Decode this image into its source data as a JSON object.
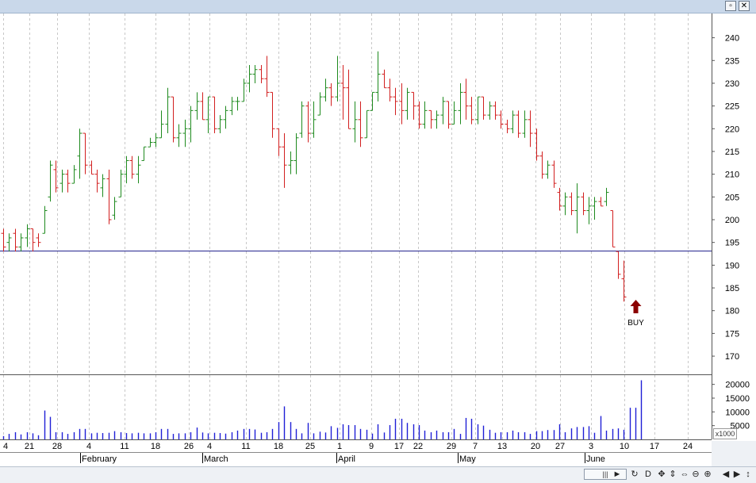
{
  "window": {
    "restore_icon": "restore-icon",
    "close_icon": "close-icon",
    "restore_glyph": "▫",
    "close_glyph": "✕"
  },
  "colors": {
    "up": "#1e8a1e",
    "down": "#d21f1f",
    "volume": "#1f1fd6",
    "level_line": "#23238f",
    "buy_arrow": "#8b0000",
    "grid": "#c8c8c8"
  },
  "price_axis": {
    "ticks": [
      240,
      235,
      230,
      225,
      220,
      215,
      210,
      205,
      200,
      195,
      190,
      185,
      180,
      175,
      170
    ],
    "range": [
      166,
      241.5
    ]
  },
  "volume_axis": {
    "ticks": [
      {
        "label": "20000",
        "v": 20000
      },
      {
        "label": "15000",
        "v": 15000
      },
      {
        "label": "10000",
        "v": 10000
      },
      {
        "label": "5000",
        "v": 5000
      }
    ],
    "max": 22500,
    "scale_label": "x1000"
  },
  "time_axis": {
    "day_labels": [
      "4",
      "21",
      "28",
      "4",
      "11",
      "18",
      "26",
      "4",
      "11",
      "18",
      "25",
      "1",
      "9",
      "17",
      "22",
      "29",
      "7",
      "13",
      "20",
      "27",
      "3",
      "10",
      "17",
      "24"
    ],
    "month_labels": [
      "February",
      "March",
      "April",
      "May",
      "June"
    ]
  },
  "level_line": {
    "price": 193.2
  },
  "signal": {
    "label": "BUY",
    "bar_index": 108
  },
  "chart_data": {
    "type": "ohlc",
    "ylim": [
      166,
      241.5
    ],
    "support_level": 193.2,
    "annotation": {
      "text": "BUY",
      "price": 181
    },
    "bars": [
      {
        "o": 197,
        "h": 198,
        "l": 193,
        "c": 194
      },
      {
        "o": 195,
        "h": 197,
        "l": 193,
        "c": 196
      },
      {
        "o": 197,
        "h": 198,
        "l": 193,
        "c": 194
      },
      {
        "o": 194,
        "h": 197,
        "l": 193,
        "c": 196
      },
      {
        "o": 196,
        "h": 199,
        "l": 194,
        "c": 198
      },
      {
        "o": 198,
        "h": 198,
        "l": 193,
        "c": 195
      },
      {
        "o": 196,
        "h": 197,
        "l": 194,
        "c": 195
      },
      {
        "o": 197,
        "h": 203,
        "l": 197,
        "c": 202
      },
      {
        "o": 205,
        "h": 213,
        "l": 204,
        "c": 212
      },
      {
        "o": 211,
        "h": 213,
        "l": 206,
        "c": 207
      },
      {
        "o": 208,
        "h": 211,
        "l": 206,
        "c": 210
      },
      {
        "o": 210,
        "h": 211,
        "l": 206,
        "c": 208
      },
      {
        "o": 208,
        "h": 212,
        "l": 208,
        "c": 211
      },
      {
        "o": 214,
        "h": 220,
        "l": 209,
        "c": 219
      },
      {
        "o": 219,
        "h": 219,
        "l": 210,
        "c": 212
      },
      {
        "o": 212,
        "h": 213,
        "l": 210,
        "c": 210
      },
      {
        "o": 210,
        "h": 211,
        "l": 206,
        "c": 208
      },
      {
        "o": 207,
        "h": 210,
        "l": 205,
        "c": 209
      },
      {
        "o": 209,
        "h": 211,
        "l": 199,
        "c": 200
      },
      {
        "o": 201,
        "h": 205,
        "l": 200,
        "c": 204
      },
      {
        "o": 205,
        "h": 211,
        "l": 205,
        "c": 210
      },
      {
        "o": 210,
        "h": 214,
        "l": 208,
        "c": 213
      },
      {
        "o": 213,
        "h": 214,
        "l": 209,
        "c": 210
      },
      {
        "o": 210,
        "h": 214,
        "l": 208,
        "c": 212
      },
      {
        "o": 213,
        "h": 216,
        "l": 213,
        "c": 216
      },
      {
        "o": 216,
        "h": 218,
        "l": 216,
        "c": 217
      },
      {
        "o": 217,
        "h": 219,
        "l": 216,
        "c": 218
      },
      {
        "o": 218,
        "h": 224,
        "l": 218,
        "c": 221
      },
      {
        "o": 221,
        "h": 229,
        "l": 219,
        "c": 227
      },
      {
        "o": 227,
        "h": 227,
        "l": 217,
        "c": 218
      },
      {
        "o": 218,
        "h": 221,
        "l": 216,
        "c": 219
      },
      {
        "o": 219,
        "h": 222,
        "l": 216,
        "c": 220
      },
      {
        "o": 220,
        "h": 225,
        "l": 217,
        "c": 224
      },
      {
        "o": 224,
        "h": 228,
        "l": 222,
        "c": 226
      },
      {
        "o": 226,
        "h": 228,
        "l": 222,
        "c": 222
      },
      {
        "o": 222,
        "h": 227,
        "l": 219,
        "c": 227
      },
      {
        "o": 227,
        "h": 227,
        "l": 219,
        "c": 220
      },
      {
        "o": 220,
        "h": 223,
        "l": 219,
        "c": 222
      },
      {
        "o": 222,
        "h": 225,
        "l": 220,
        "c": 224
      },
      {
        "o": 224,
        "h": 227,
        "l": 223,
        "c": 226
      },
      {
        "o": 226,
        "h": 227,
        "l": 224,
        "c": 226
      },
      {
        "o": 226,
        "h": 231,
        "l": 226,
        "c": 230
      },
      {
        "o": 230,
        "h": 234,
        "l": 228,
        "c": 232
      },
      {
        "o": 232,
        "h": 234,
        "l": 230,
        "c": 233
      },
      {
        "o": 233,
        "h": 234,
        "l": 230,
        "c": 231
      },
      {
        "o": 231,
        "h": 236,
        "l": 227,
        "c": 228
      },
      {
        "o": 228,
        "h": 228,
        "l": 218,
        "c": 220
      },
      {
        "o": 220,
        "h": 220,
        "l": 214,
        "c": 216
      },
      {
        "o": 216,
        "h": 219,
        "l": 207,
        "c": 212
      },
      {
        "o": 212,
        "h": 215,
        "l": 210,
        "c": 213
      },
      {
        "o": 213,
        "h": 219,
        "l": 210,
        "c": 218
      },
      {
        "o": 219,
        "h": 226,
        "l": 218,
        "c": 225
      },
      {
        "o": 225,
        "h": 226,
        "l": 217,
        "c": 219
      },
      {
        "o": 219,
        "h": 226,
        "l": 218,
        "c": 222
      },
      {
        "o": 223,
        "h": 228,
        "l": 223,
        "c": 227
      },
      {
        "o": 227,
        "h": 231,
        "l": 226,
        "c": 229
      },
      {
        "o": 229,
        "h": 230,
        "l": 225,
        "c": 227
      },
      {
        "o": 227,
        "h": 236,
        "l": 226,
        "c": 230
      },
      {
        "o": 230,
        "h": 234,
        "l": 222,
        "c": 229
      },
      {
        "o": 229,
        "h": 233,
        "l": 220,
        "c": 220
      },
      {
        "o": 220,
        "h": 226,
        "l": 217,
        "c": 222
      },
      {
        "o": 222,
        "h": 226,
        "l": 216,
        "c": 218
      },
      {
        "o": 218,
        "h": 224,
        "l": 218,
        "c": 224
      },
      {
        "o": 224,
        "h": 228,
        "l": 224,
        "c": 228
      },
      {
        "o": 228,
        "h": 237,
        "l": 226,
        "c": 232
      },
      {
        "o": 232,
        "h": 233,
        "l": 229,
        "c": 229
      },
      {
        "o": 229,
        "h": 231,
        "l": 226,
        "c": 227
      },
      {
        "o": 227,
        "h": 229,
        "l": 223,
        "c": 226
      },
      {
        "o": 226,
        "h": 230,
        "l": 221,
        "c": 224
      },
      {
        "o": 224,
        "h": 229,
        "l": 222,
        "c": 228
      },
      {
        "o": 228,
        "h": 228,
        "l": 222,
        "c": 225
      },
      {
        "o": 225,
        "h": 226,
        "l": 220,
        "c": 221
      },
      {
        "o": 221,
        "h": 226,
        "l": 220,
        "c": 224
      },
      {
        "o": 224,
        "h": 224,
        "l": 220,
        "c": 222
      },
      {
        "o": 222,
        "h": 224,
        "l": 220,
        "c": 223
      },
      {
        "o": 223,
        "h": 227,
        "l": 221,
        "c": 226
      },
      {
        "o": 226,
        "h": 226,
        "l": 220,
        "c": 221
      },
      {
        "o": 221,
        "h": 226,
        "l": 221,
        "c": 224
      },
      {
        "o": 224,
        "h": 230,
        "l": 221,
        "c": 228
      },
      {
        "o": 228,
        "h": 231,
        "l": 222,
        "c": 225
      },
      {
        "o": 225,
        "h": 227,
        "l": 221,
        "c": 222
      },
      {
        "o": 222,
        "h": 227,
        "l": 221,
        "c": 227
      },
      {
        "o": 227,
        "h": 227,
        "l": 222,
        "c": 223
      },
      {
        "o": 223,
        "h": 226,
        "l": 222,
        "c": 225
      },
      {
        "o": 225,
        "h": 226,
        "l": 222,
        "c": 223
      },
      {
        "o": 223,
        "h": 224,
        "l": 220,
        "c": 221
      },
      {
        "o": 221,
        "h": 222,
        "l": 219,
        "c": 220
      },
      {
        "o": 220,
        "h": 224,
        "l": 219,
        "c": 223
      },
      {
        "o": 223,
        "h": 224,
        "l": 218,
        "c": 219
      },
      {
        "o": 219,
        "h": 224,
        "l": 218,
        "c": 222
      },
      {
        "o": 222,
        "h": 224,
        "l": 216,
        "c": 219
      },
      {
        "o": 219,
        "h": 220,
        "l": 213,
        "c": 214
      },
      {
        "o": 214,
        "h": 215,
        "l": 209,
        "c": 210
      },
      {
        "o": 210,
        "h": 213,
        "l": 209,
        "c": 212
      },
      {
        "o": 212,
        "h": 213,
        "l": 207,
        "c": 208
      },
      {
        "o": 206,
        "h": 207,
        "l": 202,
        "c": 203
      },
      {
        "o": 203,
        "h": 206,
        "l": 201,
        "c": 205
      },
      {
        "o": 205,
        "h": 206,
        "l": 201,
        "c": 202
      },
      {
        "o": 202,
        "h": 208,
        "l": 197,
        "c": 205
      },
      {
        "o": 205,
        "h": 206,
        "l": 201,
        "c": 202
      },
      {
        "o": 202,
        "h": 205,
        "l": 199,
        "c": 203
      },
      {
        "o": 203,
        "h": 205,
        "l": 200,
        "c": 204
      },
      {
        "o": 204,
        "h": 205,
        "l": 203,
        "c": 203
      },
      {
        "o": 204,
        "h": 207,
        "l": 203,
        "c": 206
      },
      {
        "o": 202,
        "h": 202,
        "l": 194,
        "c": 194
      },
      {
        "o": 193,
        "h": 193,
        "l": 187,
        "c": 188
      },
      {
        "o": 187,
        "h": 191,
        "l": 182,
        "c": 183
      }
    ],
    "volume": [
      1200,
      2000,
      2600,
      1800,
      2600,
      2200,
      1500,
      10500,
      8200,
      2600,
      2600,
      2000,
      2600,
      3800,
      3800,
      2200,
      2400,
      2300,
      2400,
      3000,
      2600,
      2300,
      2200,
      2400,
      2200,
      2200,
      2600,
      3800,
      3800,
      2000,
      2200,
      2200,
      2600,
      4300,
      2500,
      2200,
      2400,
      2300,
      2100,
      2600,
      3200,
      3800,
      3800,
      3600,
      2400,
      2600,
      3800,
      6300,
      12000,
      6300,
      3800,
      2200,
      6000,
      2200,
      2800,
      2500,
      4800,
      4200,
      5500,
      5200,
      5200,
      3800,
      3500,
      2100,
      5500,
      2500,
      5200,
      7500,
      7500,
      6000,
      5500,
      5200,
      3200,
      2600,
      3200,
      2600,
      2600,
      3800,
      2000,
      7800,
      7500,
      5500,
      5000,
      3500,
      2400,
      2600,
      2600,
      3200,
      2600,
      2600,
      2000,
      3000,
      3000,
      3400,
      3400,
      5500,
      2600,
      4000,
      4500,
      4500,
      4800,
      2400,
      8500,
      3200,
      3800,
      4000,
      3500,
      11500,
      11500,
      21500
    ]
  }
}
